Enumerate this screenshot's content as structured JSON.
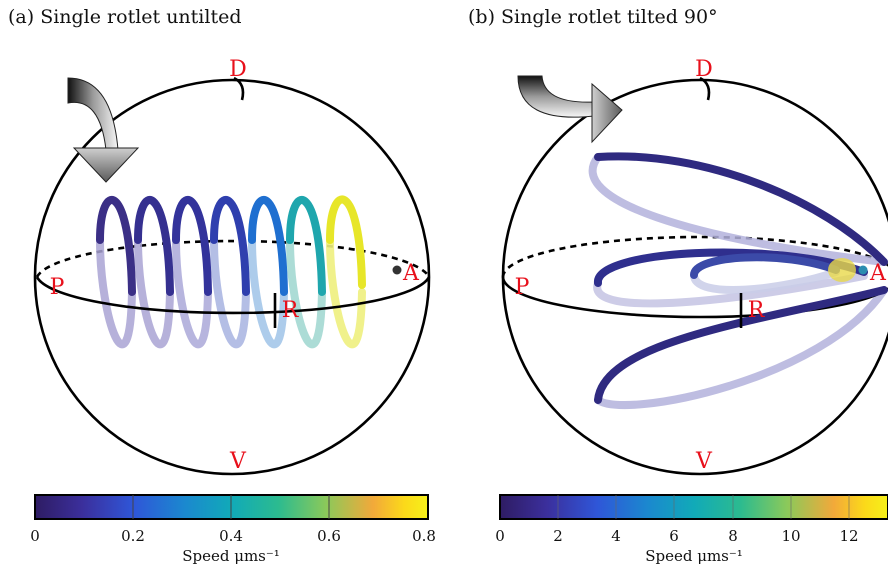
{
  "panels": [
    {
      "title": "(a) Single rotlet untilted",
      "labels": {
        "dorsal": "D",
        "ventral": "V",
        "posterior": "P",
        "anterior": "A",
        "right": "R"
      },
      "colorbar": {
        "ticks": [
          "0",
          "0.2",
          "0.4",
          "0.6",
          "0.8"
        ],
        "label": "Speed μms⁻¹"
      }
    },
    {
      "title": "(b) Single rotlet tilted 90°",
      "labels": {
        "dorsal": "D",
        "ventral": "V",
        "posterior": "P",
        "anterior": "A",
        "right": "R"
      },
      "colorbar": {
        "ticks": [
          "0",
          "2",
          "4",
          "6",
          "8",
          "10",
          "12"
        ],
        "label": "Speed μms⁻¹"
      }
    }
  ],
  "colors": {
    "label": "#e8101b",
    "colormap": [
      "#2e1c63",
      "#3b2f9c",
      "#2f56d8",
      "#1b88cf",
      "#11aab8",
      "#2cbb8f",
      "#8bc95a",
      "#d7be36",
      "#fbd91a",
      "#f6f11a"
    ]
  }
}
